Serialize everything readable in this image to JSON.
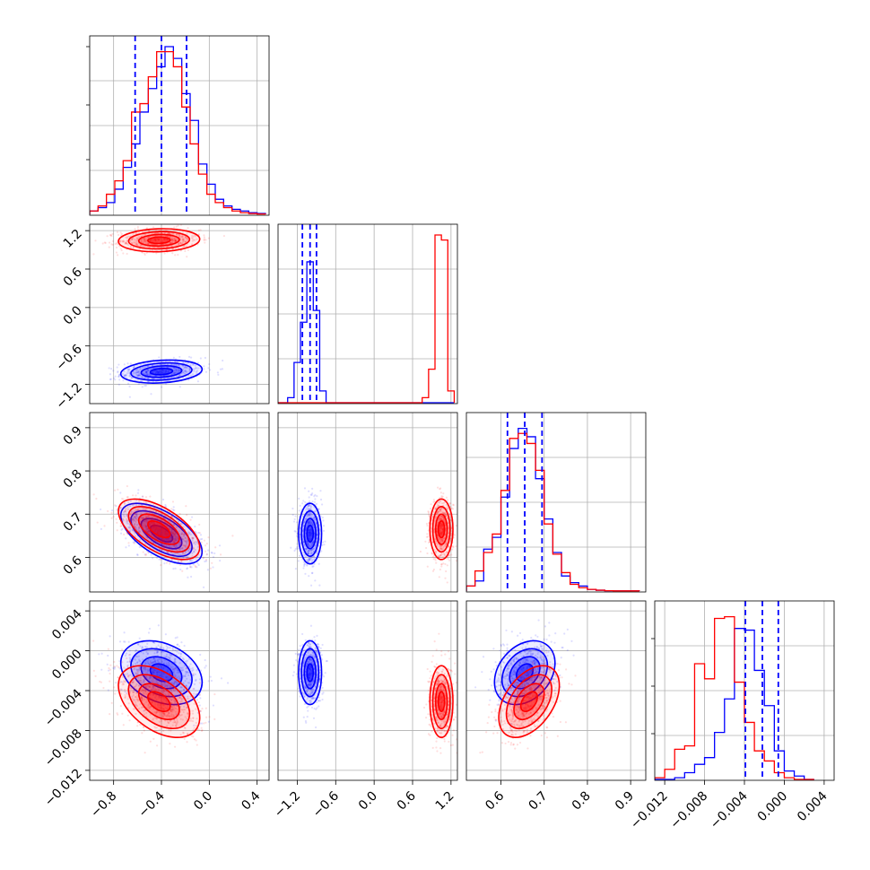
{
  "chart_data": {
    "type": "corner",
    "n_params": 4,
    "series": [
      {
        "name": "",
        "color": "#0000ff",
        "mean": [
          -0.4,
          -1.0,
          0.655,
          -0.0022
        ],
        "sd": [
          0.17,
          0.09,
          0.035,
          0.0016
        ],
        "quantiles_16_50_84": [
          [
            -0.62,
            -0.4,
            -0.19
          ],
          [
            -1.12,
            -1.0,
            -0.9
          ],
          [
            0.615,
            0.655,
            0.695
          ],
          [
            -0.0039,
            -0.0022,
            -0.0006
          ]
        ]
      },
      {
        "name": "",
        "color": "#ff0000",
        "mean": [
          -0.42,
          1.05,
          0.665,
          -0.0051
        ],
        "sd": [
          0.17,
          0.09,
          0.035,
          0.0018
        ]
      }
    ],
    "correlations": {
      "blue": {
        "1-0": 0.2,
        "2-0": -0.6,
        "2-1": 0.0,
        "3-0": -0.3,
        "3-1": 0.0,
        "3-2": 0.3
      },
      "red": {
        "1-0": 0.1,
        "2-0": -0.6,
        "2-1": 0.0,
        "3-0": -0.45,
        "3-1": 0.0,
        "3-2": 0.45
      }
    },
    "hist_1d": {
      "0": {
        "edges": [
          -1.0,
          -0.93,
          -0.86,
          -0.79,
          -0.72,
          -0.65,
          -0.58,
          -0.51,
          -0.44,
          -0.37,
          -0.3,
          -0.23,
          -0.16,
          -0.09,
          -0.02,
          0.05,
          0.12,
          0.19,
          0.26,
          0.33,
          0.4,
          0.47
        ],
        "blue": [
          0.02,
          0.04,
          0.07,
          0.15,
          0.28,
          0.42,
          0.61,
          0.75,
          0.88,
          1.0,
          0.93,
          0.72,
          0.56,
          0.3,
          0.18,
          0.09,
          0.05,
          0.03,
          0.02,
          0.01,
          0.005
        ],
        "red": [
          0.02,
          0.05,
          0.12,
          0.2,
          0.32,
          0.61,
          0.66,
          0.82,
          0.97,
          0.97,
          0.88,
          0.64,
          0.42,
          0.24,
          0.12,
          0.07,
          0.04,
          0.02,
          0.01,
          0.005,
          0.002
        ]
      },
      "1": {
        "edges": [
          -1.55,
          -1.45,
          -1.35,
          -1.25,
          -1.15,
          -1.05,
          -0.95,
          -0.85,
          -0.75,
          -0.65,
          -0.55,
          -0.45,
          -0.35,
          -0.25,
          -0.15,
          -0.05,
          0.05,
          0.15,
          0.25,
          0.35,
          0.45,
          0.55,
          0.65,
          0.75,
          0.85,
          0.95,
          1.05,
          1.15,
          1.25
        ],
        "blue": [
          0.0,
          0.0,
          0.03,
          0.24,
          0.48,
          0.84,
          0.55,
          0.07,
          0.0,
          0,
          0,
          0,
          0,
          0,
          0,
          0,
          0,
          0,
          0,
          0,
          0,
          0,
          0,
          0,
          0,
          0,
          0,
          0
        ],
        "red": [
          0,
          0,
          0,
          0,
          0,
          0,
          0,
          0,
          0,
          0,
          0,
          0,
          0,
          0,
          0,
          0,
          0,
          0,
          0,
          0,
          0,
          0,
          0,
          0.03,
          0.2,
          1.0,
          0.97,
          0.07
        ]
      },
      "2": {
        "edges": [
          0.52,
          0.54,
          0.56,
          0.58,
          0.6,
          0.62,
          0.64,
          0.66,
          0.68,
          0.7,
          0.72,
          0.74,
          0.76,
          0.78,
          0.8,
          0.82,
          0.84,
          0.86,
          0.88,
          0.9,
          0.92
        ],
        "blue": [
          0.03,
          0.06,
          0.25,
          0.32,
          0.56,
          0.85,
          0.97,
          0.92,
          0.67,
          0.43,
          0.23,
          0.09,
          0.05,
          0.03,
          0.01,
          0.005,
          0.002,
          0.001,
          0.001,
          0.001
        ],
        "red": [
          0.03,
          0.12,
          0.23,
          0.34,
          0.6,
          0.91,
          0.94,
          0.88,
          0.72,
          0.4,
          0.22,
          0.11,
          0.04,
          0.02,
          0.01,
          0.005,
          0.002,
          0.001,
          0.001,
          0.001
        ]
      },
      "3": {
        "edges": [
          -0.013,
          -0.012,
          -0.011,
          -0.01,
          -0.009,
          -0.008,
          -0.007,
          -0.006,
          -0.005,
          -0.004,
          -0.003,
          -0.002,
          -0.001,
          0.0,
          0.001,
          0.002,
          0.003
        ],
        "blue": [
          0.0,
          0.0,
          0.01,
          0.04,
          0.09,
          0.13,
          0.28,
          0.48,
          0.9,
          0.89,
          0.65,
          0.44,
          0.17,
          0.05,
          0.02,
          0.0
        ],
        "red": [
          0.01,
          0.06,
          0.18,
          0.2,
          0.69,
          0.6,
          0.96,
          0.97,
          0.58,
          0.34,
          0.17,
          0.11,
          0.04,
          0.01,
          0.0,
          0.0
        ]
      }
    },
    "axes": [
      {
        "range": [
          -1.0,
          0.5
        ],
        "ticks": [
          -0.8,
          -0.4,
          0.0,
          0.4
        ],
        "tick_labels": [
          "−0.8",
          "−0.4",
          "0.0",
          "0.4"
        ]
      },
      {
        "range": [
          -1.5,
          1.3
        ],
        "ticks": [
          -1.2,
          -0.6,
          0.0,
          0.6,
          1.2
        ],
        "tick_labels": [
          "−1.2",
          "−0.6",
          "0.0",
          "0.6",
          "1.2"
        ]
      },
      {
        "range": [
          0.52,
          0.935
        ],
        "ticks": [
          0.6,
          0.7,
          0.8,
          0.9
        ],
        "tick_labels": [
          "0.6",
          "0.7",
          "0.8",
          "0.9"
        ]
      },
      {
        "range": [
          -0.013,
          0.005
        ],
        "ticks": [
          -0.012,
          -0.008,
          -0.004,
          0.0,
          0.004
        ],
        "tick_labels": [
          "−0.012",
          "−0.008",
          "−0.004",
          "0.000",
          "0.004"
        ]
      }
    ],
    "grid": true,
    "xlabel": "",
    "ylabel": "",
    "title": ""
  }
}
